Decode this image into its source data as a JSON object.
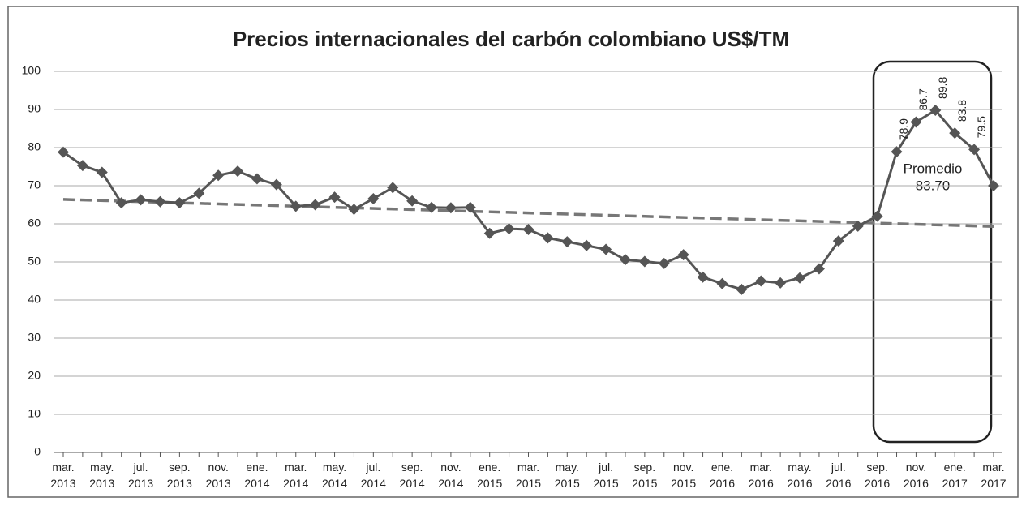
{
  "chart_data": {
    "type": "line",
    "title": "Precios internacionales del carbón colombiano US$/TM",
    "categories": [
      "mar. 2013",
      null,
      "may. 2013",
      null,
      "jul. 2013",
      null,
      "sep. 2013",
      null,
      "nov. 2013",
      null,
      "ene. 2014",
      null,
      "mar. 2014",
      null,
      "may. 2014",
      null,
      "jul. 2014",
      null,
      "sep. 2014",
      null,
      "nov. 2014",
      null,
      "ene. 2015",
      null,
      "mar. 2015",
      null,
      "may. 2015",
      null,
      "jul. 2015",
      null,
      "sep. 2015",
      null,
      "nov. 2015",
      null,
      "ene. 2016",
      null,
      "mar. 2016",
      null,
      "may. 2016",
      null,
      "jul. 2016",
      null,
      "sep. 2016",
      null,
      "nov. 2016",
      null,
      "ene. 2017",
      null,
      "mar. 2017"
    ],
    "values": [
      78.8,
      75.3,
      73.5,
      65.5,
      66.3,
      65.8,
      65.5,
      68,
      72.7,
      73.8,
      71.8,
      70.3,
      64.6,
      65,
      67,
      63.8,
      66.6,
      69.5,
      66,
      64.3,
      64.2,
      64.3,
      57.5,
      58.7,
      58.5,
      56.3,
      55.3,
      54.3,
      53.3,
      50.6,
      50.1,
      49.6,
      51.9,
      46,
      44.3,
      42.8,
      45,
      44.5,
      45.8,
      48.2,
      55.5,
      59.4,
      62,
      78.9,
      86.7,
      89.8,
      83.8,
      79.5,
      70
    ],
    "value_labels": [
      null,
      null,
      null,
      null,
      null,
      null,
      null,
      null,
      null,
      null,
      null,
      null,
      null,
      null,
      null,
      null,
      null,
      null,
      null,
      null,
      null,
      null,
      null,
      null,
      null,
      null,
      null,
      null,
      null,
      null,
      null,
      null,
      null,
      null,
      null,
      null,
      null,
      null,
      null,
      null,
      null,
      null,
      null,
      "78.9",
      "86.7",
      "89.8",
      "83.8",
      "79.5",
      null
    ],
    "color": "#555555",
    "trendline": {
      "start": 66.4,
      "end": 59.3,
      "color": "#777777"
    },
    "annotation": [
      "Promedio",
      "83.70"
    ],
    "ylim": [
      0,
      100
    ],
    "yticks": [
      0,
      10,
      20,
      30,
      40,
      50,
      60,
      70,
      80,
      90,
      100
    ],
    "grid": true
  }
}
